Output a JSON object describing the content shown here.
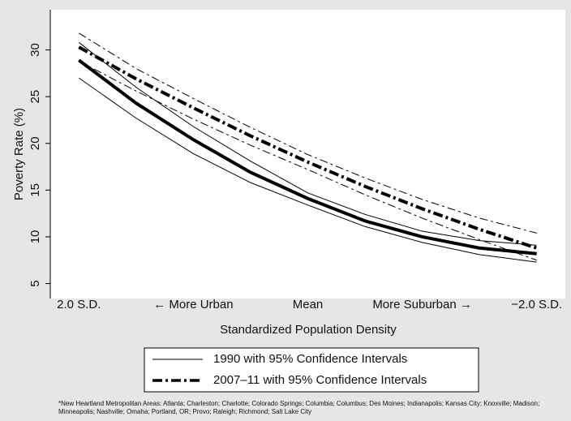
{
  "chart_data": {
    "type": "line",
    "y_label": "Poverty Rate (%)",
    "x_label": "Standardized Population Density",
    "x": [
      2,
      1.5,
      1,
      0.5,
      0,
      -0.5,
      -1,
      -1.5,
      -2
    ],
    "xlim": [
      2.25,
      -2.25
    ],
    "xticks": [
      {
        "value": 2,
        "label": "2.0 S.D."
      },
      {
        "value": 1,
        "label": "← More Urban"
      },
      {
        "value": 0,
        "label": "Mean"
      },
      {
        "value": -1,
        "label": "More Suburban →"
      },
      {
        "value": -2,
        "label": "−2.0 S.D."
      }
    ],
    "ylim": [
      3.4,
      34.3
    ],
    "yticks": [
      5,
      10,
      15,
      20,
      25,
      30
    ],
    "grid": false,
    "series": [
      {
        "name": "1990 with 95% Confidence Intervals",
        "color": "#000000",
        "style": "solid",
        "values": [
          28.9,
          24.3,
          20.4,
          16.9,
          14.1,
          11.7,
          10.0,
          8.8,
          8.2
        ],
        "ci_lower": [
          27.0,
          22.7,
          18.9,
          15.8,
          13.4,
          11.1,
          9.4,
          8.1,
          7.3
        ],
        "ci_upper": [
          30.8,
          26.0,
          21.8,
          18.1,
          14.7,
          12.4,
          10.6,
          9.6,
          9.1
        ]
      },
      {
        "name": "2007–11 with 95% Confidence Intervals",
        "color": "#000000",
        "style": "dashdot",
        "values": [
          30.3,
          26.9,
          23.8,
          20.8,
          18.0,
          15.4,
          13.0,
          10.8,
          8.8
        ],
        "ci_lower": [
          28.8,
          25.6,
          22.6,
          19.8,
          17.2,
          14.5,
          12.0,
          9.7,
          7.5
        ],
        "ci_upper": [
          31.8,
          28.0,
          24.8,
          21.7,
          18.8,
          16.3,
          14.0,
          12.0,
          10.4
        ]
      }
    ],
    "footnote": "*New Heartland Metropolitan Areas: Atlanta; Charleston; Charlotte; Colorado Springs; Columbia; Columbus; Des Moines; Indianapolis; Kansas City; Knoxville; Madison; Minneapolis; Nashville; Omaha; Portland, OR; Provo; Raleigh; Richmond; Salt Lake City"
  }
}
